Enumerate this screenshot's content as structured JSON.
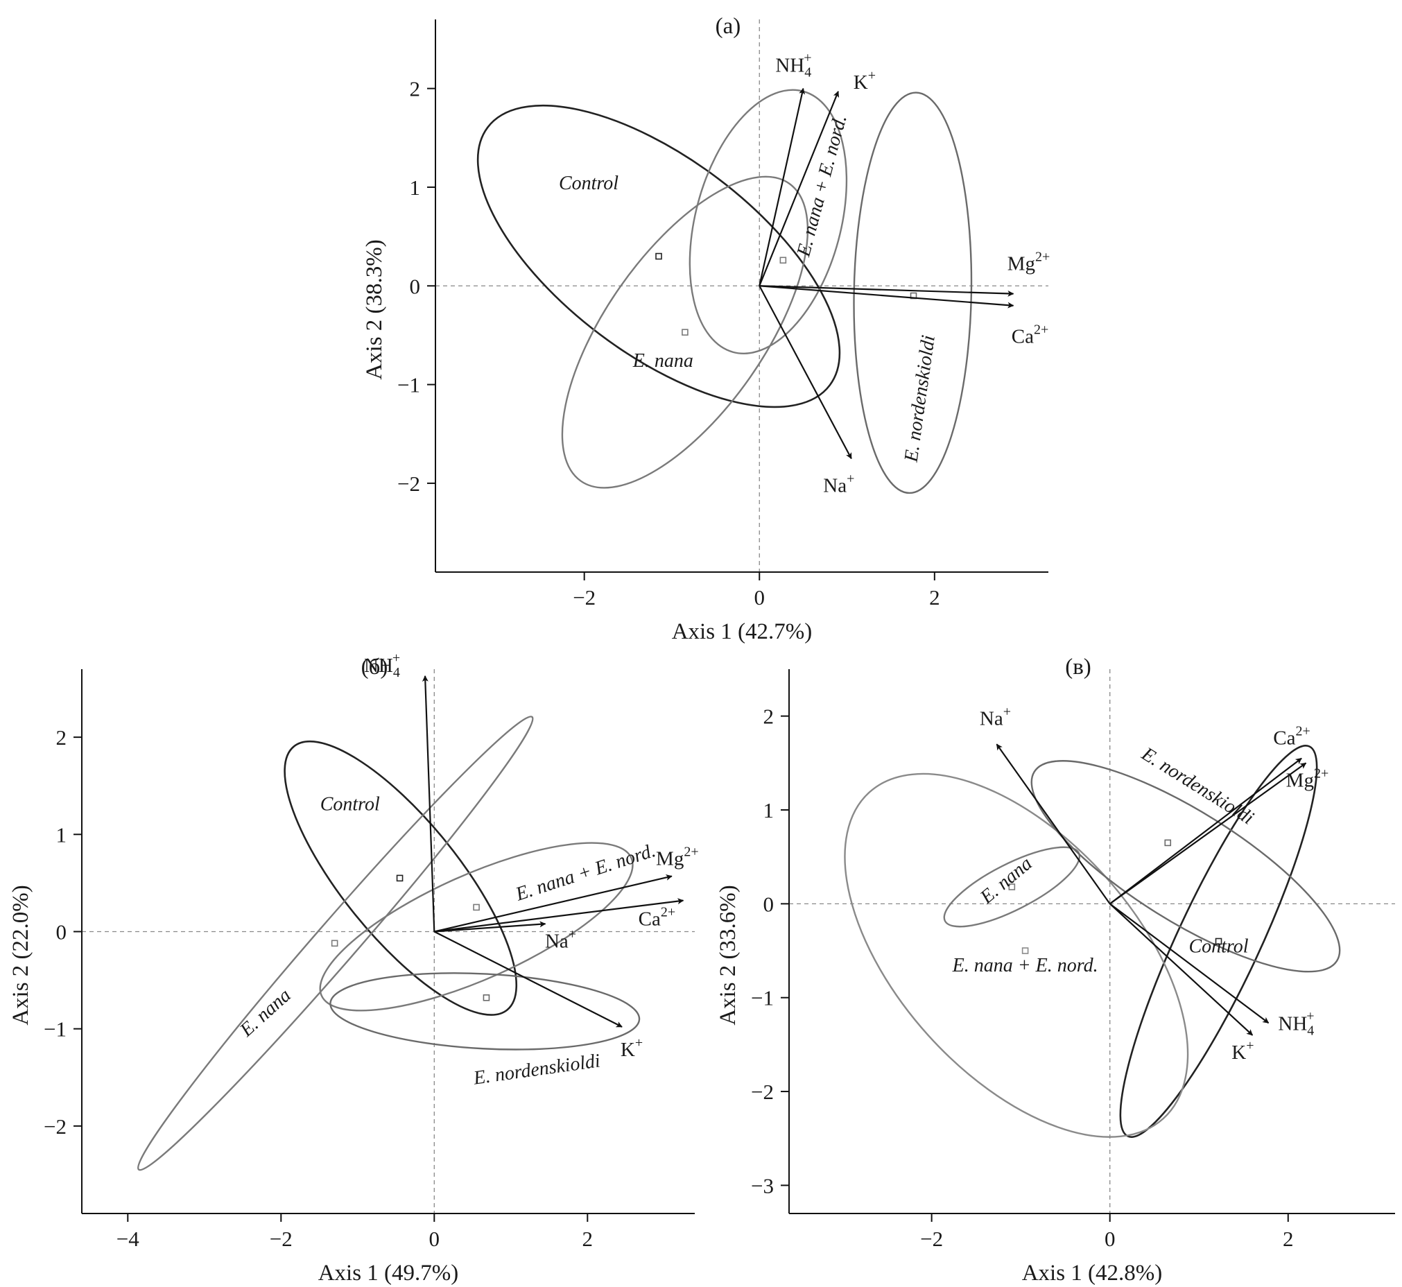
{
  "chart_data": [
    {
      "id": "a",
      "type": "scatter",
      "title": "(a)",
      "xlabel": "Axis 1 (42.7%)",
      "ylabel": "Axis 2 (38.3%)",
      "xlim": [
        -3.7,
        3.3
      ],
      "ylim": [
        -2.9,
        2.7
      ],
      "xticks": [
        -2,
        0,
        2
      ],
      "yticks": [
        -2,
        -1,
        0,
        1,
        2
      ],
      "grid": false,
      "vectors": [
        {
          "label": "NH4+",
          "x": 0.5,
          "y": 2.0
        },
        {
          "label": "K+",
          "x": 0.9,
          "y": 1.97
        },
        {
          "label": "Mg2+",
          "x": 2.9,
          "y": -0.08
        },
        {
          "label": "Ca2+",
          "x": 2.9,
          "y": -0.2
        },
        {
          "label": "Na+",
          "x": 1.05,
          "y": -1.75
        }
      ],
      "groups": [
        {
          "label": "Control",
          "centroid": [
            -1.15,
            0.3
          ],
          "ellipse": {
            "cx": -1.15,
            "cy": 0.3,
            "rx": 2.3,
            "ry": 1.05,
            "angle": -37
          },
          "color": "#222222"
        },
        {
          "label": "E. nana",
          "centroid": [
            -0.85,
            -0.47
          ],
          "ellipse": {
            "cx": -0.85,
            "cy": -0.47,
            "rx": 1.95,
            "ry": 0.85,
            "angle": 55
          },
          "color": "#7a7a7a"
        },
        {
          "label": "E. nana + E. nord.",
          "centroid": [
            0.27,
            0.26
          ],
          "ellipse": {
            "cx": 0.1,
            "cy": 0.65,
            "rx": 1.45,
            "ry": 0.78,
            "angle": 75
          },
          "color": "#7a7a7a"
        },
        {
          "label": "E. nordenskioldi",
          "centroid": [
            1.76,
            -0.1
          ],
          "ellipse": {
            "cx": 1.75,
            "cy": -0.07,
            "rx": 2.15,
            "ry": 0.63,
            "angle": 89
          },
          "color": "#6a6a6a"
        }
      ]
    },
    {
      "id": "b",
      "type": "scatter",
      "title": "(б)",
      "xlabel": "Axis 1 (49.7%)",
      "ylabel": "Axis 2 (22.0%)",
      "xlim": [
        -4.6,
        3.4
      ],
      "ylim": [
        -2.9,
        2.7
      ],
      "xticks": [
        -4,
        -2,
        0,
        2
      ],
      "yticks": [
        -2,
        -1,
        0,
        1,
        2
      ],
      "grid": false,
      "vectors": [
        {
          "label": "NH4+",
          "x": -0.12,
          "y": 2.63
        },
        {
          "label": "Mg2+",
          "x": 3.1,
          "y": 0.57
        },
        {
          "label": "Ca2+",
          "x": 3.25,
          "y": 0.32
        },
        {
          "label": "Na+",
          "x": 1.45,
          "y": 0.08
        },
        {
          "label": "K+",
          "x": 2.45,
          "y": -0.98
        }
      ],
      "groups": [
        {
          "label": "Control",
          "centroid": [
            -0.45,
            0.55
          ],
          "ellipse": {
            "cx": -0.44,
            "cy": 0.55,
            "rx": 1.95,
            "ry": 0.67,
            "angle": -51
          },
          "color": "#222222"
        },
        {
          "label": "E. nana",
          "centroid": [
            -1.3,
            -0.12
          ],
          "ellipse": {
            "cx": -1.29,
            "cy": -0.12,
            "rx": 3.45,
            "ry": 0.24,
            "angle": 49
          },
          "color": "#7a7a7a"
        },
        {
          "label": "E. nana + E. nord.",
          "centroid": [
            0.55,
            0.25
          ],
          "ellipse": {
            "cx": 0.55,
            "cy": 0.05,
            "rx": 1.95,
            "ry": 0.6,
            "angle": 24
          },
          "color": "#7a7a7a"
        },
        {
          "label": "E. nordenskioldi",
          "centroid": [
            0.68,
            -0.68
          ],
          "ellipse": {
            "cx": 0.66,
            "cy": -0.82,
            "rx": 1.78,
            "ry": 0.43,
            "angle": -3
          },
          "color": "#6a6a6a"
        }
      ]
    },
    {
      "id": "v",
      "type": "scatter",
      "title": "(в)",
      "xlabel": "Axis 1 (42.8%)",
      "ylabel": "Axis 2 (33.6%)",
      "xlim": [
        -3.6,
        3.2
      ],
      "ylim": [
        -3.3,
        2.5
      ],
      "xticks": [
        -2,
        0,
        2
      ],
      "yticks": [
        -3,
        -2,
        -1,
        0,
        1,
        2
      ],
      "grid": false,
      "vectors": [
        {
          "label": "Na+",
          "x": -1.27,
          "y": 1.7
        },
        {
          "label": "Ca2+",
          "x": 2.15,
          "y": 1.55
        },
        {
          "label": "Mg2+",
          "x": 2.2,
          "y": 1.5
        },
        {
          "label": "NH4+",
          "x": 1.78,
          "y": -1.27
        },
        {
          "label": "K+",
          "x": 1.6,
          "y": -1.4
        }
      ],
      "groups": [
        {
          "label": "Control",
          "centroid": [
            1.22,
            -0.4
          ],
          "ellipse": {
            "cx": 1.22,
            "cy": -0.4,
            "rx": 2.35,
            "ry": 0.45,
            "angle": 65
          },
          "color": "#222222"
        },
        {
          "label": "E. nana",
          "centroid": [
            -1.1,
            0.18
          ],
          "ellipse": {
            "cx": -1.1,
            "cy": 0.18,
            "rx": 0.82,
            "ry": 0.25,
            "angle": 27
          },
          "color": "#7a7a7a"
        },
        {
          "label": "E. nana + E. nord.",
          "centroid": [
            -0.95,
            -0.5
          ],
          "ellipse": {
            "cx": -1.05,
            "cy": -0.55,
            "rx": 2.4,
            "ry": 1.3,
            "angle": -48
          },
          "color": "#8a8a8a"
        },
        {
          "label": "E. nordenskioldi",
          "centroid": [
            0.65,
            0.65
          ],
          "ellipse": {
            "cx": 0.85,
            "cy": 0.4,
            "rx": 1.95,
            "ry": 0.6,
            "angle": -32
          },
          "color": "#6a6a6a"
        }
      ]
    }
  ]
}
